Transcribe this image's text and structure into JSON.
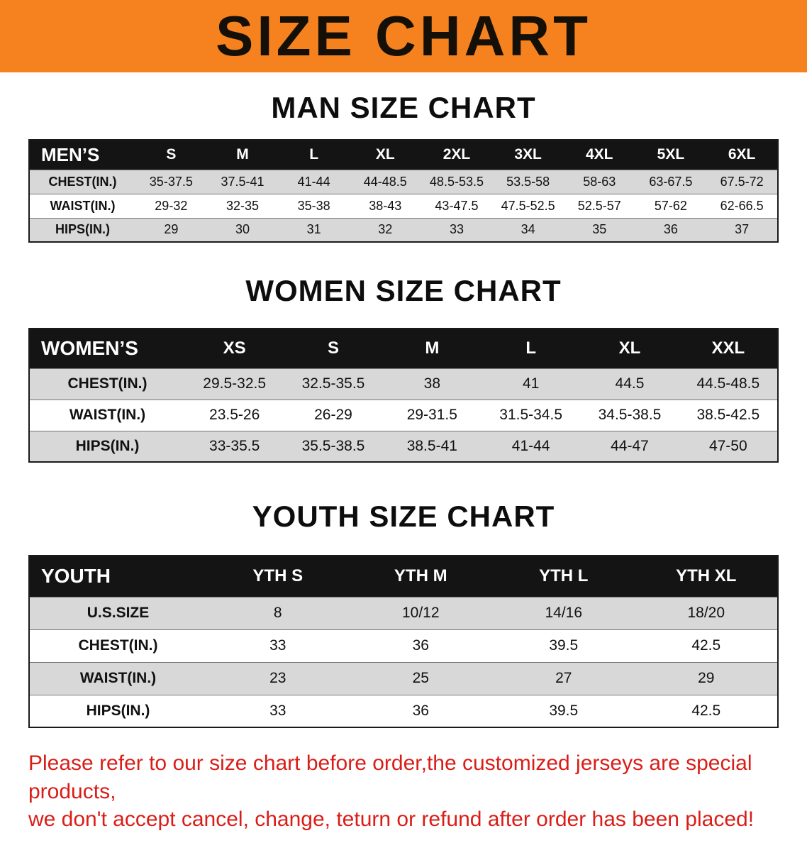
{
  "banner": {
    "title": "SIZE CHART"
  },
  "colors": {
    "banner_bg": "#f5821f",
    "table_header_bg": "#141414",
    "row_alt_bg": "#d8d8d8",
    "footer_text": "#da1d17"
  },
  "sections": [
    {
      "id": "men",
      "heading": "MAN SIZE CHART",
      "table": {
        "header": [
          "MEN’S",
          "S",
          "M",
          "L",
          "XL",
          "2XL",
          "3XL",
          "4XL",
          "5XL",
          "6XL"
        ],
        "rows": [
          [
            "CHEST(IN.)",
            "35-37.5",
            "37.5-41",
            "41-44",
            "44-48.5",
            "48.5-53.5",
            "53.5-58",
            "58-63",
            "63-67.5",
            "67.5-72"
          ],
          [
            "WAIST(IN.)",
            "29-32",
            "32-35",
            "35-38",
            "38-43",
            "43-47.5",
            "47.5-52.5",
            "52.5-57",
            "57-62",
            "62-66.5"
          ],
          [
            "HIPS(IN.)",
            "29",
            "30",
            "31",
            "32",
            "33",
            "34",
            "35",
            "36",
            "37"
          ]
        ]
      }
    },
    {
      "id": "women",
      "heading": "WOMEN SIZE CHART",
      "table": {
        "header": [
          "WOMEN’S",
          "XS",
          "S",
          "M",
          "L",
          "XL",
          "XXL"
        ],
        "rows": [
          [
            "CHEST(IN.)",
            "29.5-32.5",
            "32.5-35.5",
            "38",
            "41",
            "44.5",
            "44.5-48.5"
          ],
          [
            "WAIST(IN.)",
            "23.5-26",
            "26-29",
            "29-31.5",
            "31.5-34.5",
            "34.5-38.5",
            "38.5-42.5"
          ],
          [
            "HIPS(IN.)",
            "33-35.5",
            "35.5-38.5",
            "38.5-41",
            "41-44",
            "44-47",
            "47-50"
          ]
        ]
      }
    },
    {
      "id": "youth",
      "heading": "YOUTH SIZE CHART",
      "table": {
        "header": [
          "YOUTH",
          "YTH S",
          "YTH M",
          "YTH L",
          "YTH XL"
        ],
        "rows": [
          [
            "U.S.SIZE",
            "8",
            "10/12",
            "14/16",
            "18/20"
          ],
          [
            "CHEST(IN.)",
            "33",
            "36",
            "39.5",
            "42.5"
          ],
          [
            "WAIST(IN.)",
            "23",
            "25",
            "27",
            "29"
          ],
          [
            "HIPS(IN.)",
            "33",
            "36",
            "39.5",
            "42.5"
          ]
        ]
      }
    }
  ],
  "footer": {
    "line1": "Please refer to our size chart before order,the customized jerseys are special products,",
    "line2": "we don't accept cancel, change, teturn or refund after order has been placed!"
  }
}
